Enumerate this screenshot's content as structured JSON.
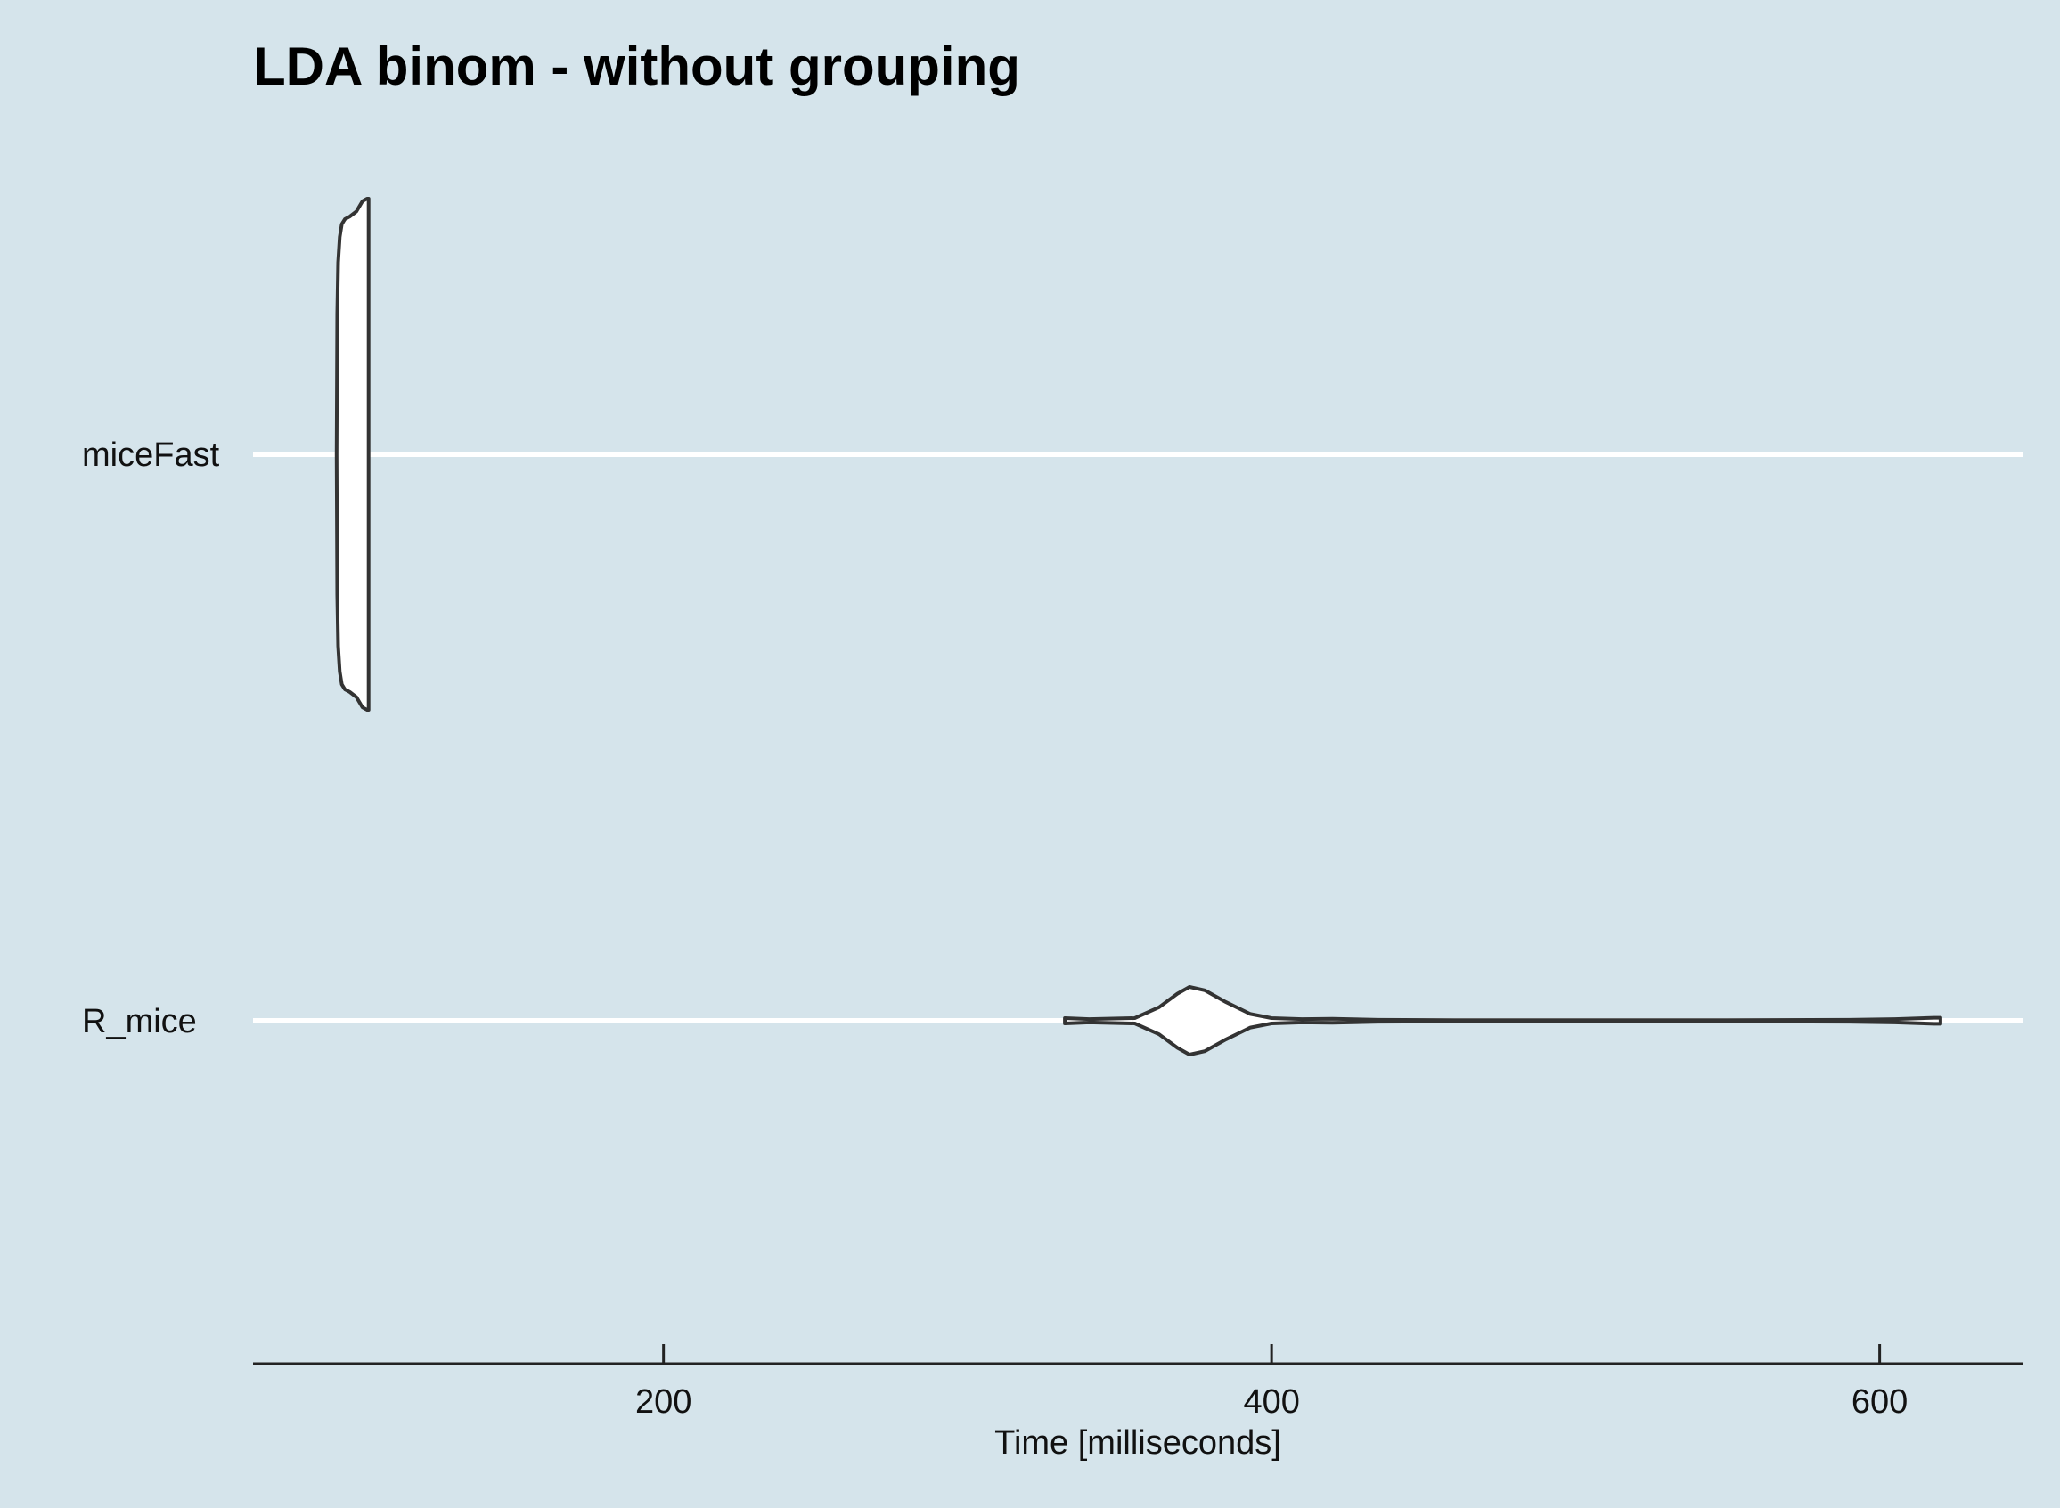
{
  "chart_data": {
    "type": "violin",
    "orientation": "horizontal",
    "title": "LDA binom - without grouping",
    "xlabel": "Time [milliseconds]",
    "ylabel": "",
    "xlim": [
      65,
      647
    ],
    "x_ticks": [
      200,
      400,
      600
    ],
    "categories": [
      "miceFast",
      "R_mice"
    ],
    "grid": "major horizontal lines only",
    "background": "#d5e4eb",
    "series": [
      {
        "category": "miceFast",
        "profile": [
          [
            92.5,
            0.0
          ],
          [
            92.7,
            0.55
          ],
          [
            93.0,
            0.75
          ],
          [
            93.5,
            0.85
          ],
          [
            94.2,
            0.9
          ],
          [
            95.2,
            0.92
          ],
          [
            96.8,
            0.93
          ],
          [
            99.0,
            0.95
          ],
          [
            101.0,
            0.99
          ],
          [
            102.5,
            1.0
          ],
          [
            103.0,
            1.0
          ]
        ]
      },
      {
        "category": "R_mice",
        "profile": [
          [
            332,
            0.08
          ],
          [
            340,
            0.05
          ],
          [
            355,
            0.08
          ],
          [
            363,
            0.4
          ],
          [
            369,
            0.8
          ],
          [
            373,
            1.0
          ],
          [
            378,
            0.9
          ],
          [
            385,
            0.55
          ],
          [
            393,
            0.2
          ],
          [
            400,
            0.08
          ],
          [
            410,
            0.05
          ],
          [
            420,
            0.06
          ],
          [
            435,
            0.03
          ],
          [
            460,
            0.02
          ],
          [
            500,
            0.02
          ],
          [
            550,
            0.02
          ],
          [
            590,
            0.03
          ],
          [
            605,
            0.05
          ],
          [
            618,
            0.09
          ],
          [
            620,
            0.09
          ]
        ]
      }
    ]
  }
}
